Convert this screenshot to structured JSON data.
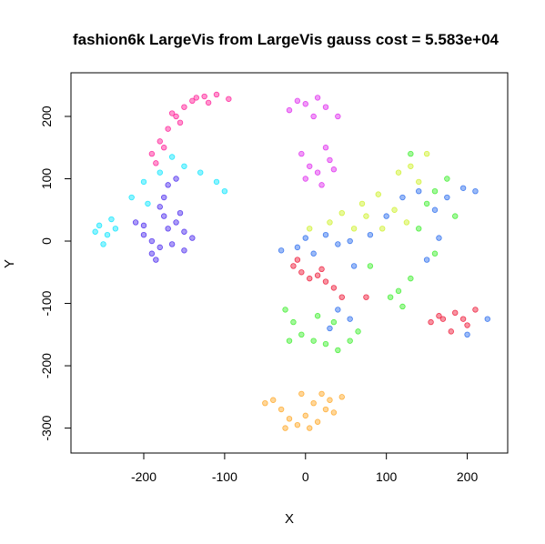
{
  "chart_data": {
    "type": "scatter",
    "title": "fashion6k LargeVis from LargeVis gauss cost = 5.583e+04",
    "xlabel": "X",
    "ylabel": "Y",
    "xlim": [
      -290,
      250
    ],
    "ylim": [
      -340,
      270
    ],
    "x_ticks": [
      -200,
      -100,
      0,
      100,
      200
    ],
    "y_ticks": [
      -300,
      -200,
      -100,
      0,
      100,
      200
    ],
    "x_tick_labels": [
      "-200",
      "-100",
      "0",
      "100",
      "200"
    ],
    "y_tick_labels": [
      "-300",
      "-200",
      "-100",
      "0",
      "100",
      "200"
    ],
    "grid": false,
    "legend": "none",
    "point_alpha": 0.45,
    "clusters": [
      {
        "color": "#ff1493",
        "points": [
          [
            -190,
            140
          ],
          [
            -180,
            160
          ],
          [
            -170,
            180
          ],
          [
            -160,
            200
          ],
          [
            -150,
            215
          ],
          [
            -140,
            225
          ],
          [
            -125,
            232
          ],
          [
            -110,
            235
          ],
          [
            -95,
            228
          ],
          [
            -120,
            222
          ],
          [
            -165,
            205
          ],
          [
            -175,
            150
          ],
          [
            -185,
            125
          ],
          [
            -155,
            190
          ],
          [
            -135,
            230
          ]
        ]
      },
      {
        "color": "#00e5ff",
        "points": [
          [
            -255,
            25
          ],
          [
            -245,
            10
          ],
          [
            -240,
            35
          ],
          [
            -250,
            -5
          ],
          [
            -235,
            20
          ],
          [
            -215,
            70
          ],
          [
            -200,
            95
          ],
          [
            -180,
            110
          ],
          [
            -150,
            120
          ],
          [
            -130,
            110
          ],
          [
            -110,
            95
          ],
          [
            -100,
            80
          ],
          [
            -165,
            135
          ],
          [
            -195,
            60
          ],
          [
            -260,
            15
          ]
        ]
      },
      {
        "color": "#4422ee",
        "points": [
          [
            -210,
            30
          ],
          [
            -200,
            10
          ],
          [
            -190,
            0
          ],
          [
            -180,
            -10
          ],
          [
            -170,
            20
          ],
          [
            -160,
            30
          ],
          [
            -150,
            15
          ],
          [
            -175,
            40
          ],
          [
            -190,
            -20
          ],
          [
            -165,
            -5
          ],
          [
            -155,
            45
          ],
          [
            -180,
            55
          ],
          [
            -170,
            90
          ],
          [
            -160,
            100
          ],
          [
            -200,
            25
          ],
          [
            -185,
            -30
          ],
          [
            -175,
            70
          ],
          [
            -150,
            -15
          ],
          [
            -140,
            5
          ]
        ]
      },
      {
        "color": "#dd22ee",
        "points": [
          [
            -20,
            210
          ],
          [
            -10,
            225
          ],
          [
            0,
            220
          ],
          [
            15,
            230
          ],
          [
            25,
            215
          ],
          [
            40,
            200
          ],
          [
            10,
            200
          ],
          [
            -5,
            140
          ],
          [
            5,
            120
          ],
          [
            15,
            110
          ],
          [
            20,
            90
          ],
          [
            30,
            130
          ],
          [
            25,
            150
          ],
          [
            0,
            100
          ],
          [
            35,
            115
          ]
        ]
      },
      {
        "color": "#ee0f2f",
        "points": [
          [
            -15,
            -40
          ],
          [
            -5,
            -50
          ],
          [
            5,
            -60
          ],
          [
            15,
            -55
          ],
          [
            25,
            -65
          ],
          [
            35,
            -75
          ],
          [
            45,
            -90
          ],
          [
            -10,
            -30
          ],
          [
            20,
            -45
          ],
          [
            155,
            -130
          ],
          [
            170,
            -125
          ],
          [
            185,
            -115
          ],
          [
            200,
            -135
          ],
          [
            210,
            -110
          ],
          [
            195,
            -125
          ],
          [
            180,
            -145
          ],
          [
            165,
            -120
          ],
          [
            75,
            -90
          ]
        ]
      },
      {
        "color": "#33ee22",
        "points": [
          [
            -25,
            -110
          ],
          [
            -15,
            -130
          ],
          [
            -5,
            -150
          ],
          [
            10,
            -160
          ],
          [
            25,
            -165
          ],
          [
            40,
            -175
          ],
          [
            55,
            -160
          ],
          [
            65,
            -145
          ],
          [
            35,
            -130
          ],
          [
            15,
            -120
          ],
          [
            -20,
            -160
          ],
          [
            105,
            -90
          ],
          [
            120,
            -105
          ],
          [
            115,
            -80
          ],
          [
            130,
            -60
          ],
          [
            140,
            20
          ],
          [
            150,
            60
          ],
          [
            160,
            80
          ],
          [
            175,
            100
          ],
          [
            185,
            40
          ],
          [
            160,
            -20
          ],
          [
            130,
            140
          ],
          [
            80,
            -40
          ]
        ]
      },
      {
        "color": "#ccf020",
        "points": [
          [
            30,
            30
          ],
          [
            45,
            45
          ],
          [
            70,
            60
          ],
          [
            90,
            75
          ],
          [
            110,
            50
          ],
          [
            125,
            30
          ],
          [
            140,
            95
          ],
          [
            130,
            120
          ],
          [
            150,
            140
          ],
          [
            95,
            20
          ],
          [
            5,
            20
          ],
          [
            60,
            20
          ],
          [
            75,
            40
          ],
          [
            115,
            110
          ]
        ]
      },
      {
        "color": "#2266ee",
        "points": [
          [
            -10,
            -10
          ],
          [
            0,
            5
          ],
          [
            10,
            -20
          ],
          [
            25,
            10
          ],
          [
            40,
            -5
          ],
          [
            55,
            0
          ],
          [
            80,
            10
          ],
          [
            100,
            40
          ],
          [
            120,
            70
          ],
          [
            140,
            80
          ],
          [
            160,
            50
          ],
          [
            175,
            70
          ],
          [
            195,
            85
          ],
          [
            210,
            80
          ],
          [
            165,
            5
          ],
          [
            150,
            -30
          ],
          [
            60,
            -40
          ],
          [
            40,
            -110
          ],
          [
            55,
            -125
          ],
          [
            30,
            -140
          ],
          [
            200,
            -150
          ],
          [
            225,
            -125
          ],
          [
            -30,
            -15
          ]
        ]
      },
      {
        "color": "#ffa31a",
        "points": [
          [
            -50,
            -260
          ],
          [
            -40,
            -255
          ],
          [
            -30,
            -270
          ],
          [
            -20,
            -285
          ],
          [
            -10,
            -295
          ],
          [
            0,
            -280
          ],
          [
            10,
            -260
          ],
          [
            20,
            -245
          ],
          [
            30,
            -255
          ],
          [
            45,
            -250
          ],
          [
            5,
            -300
          ],
          [
            -25,
            -300
          ],
          [
            15,
            -290
          ],
          [
            35,
            -275
          ],
          [
            -5,
            -245
          ],
          [
            25,
            -270
          ]
        ]
      }
    ]
  }
}
